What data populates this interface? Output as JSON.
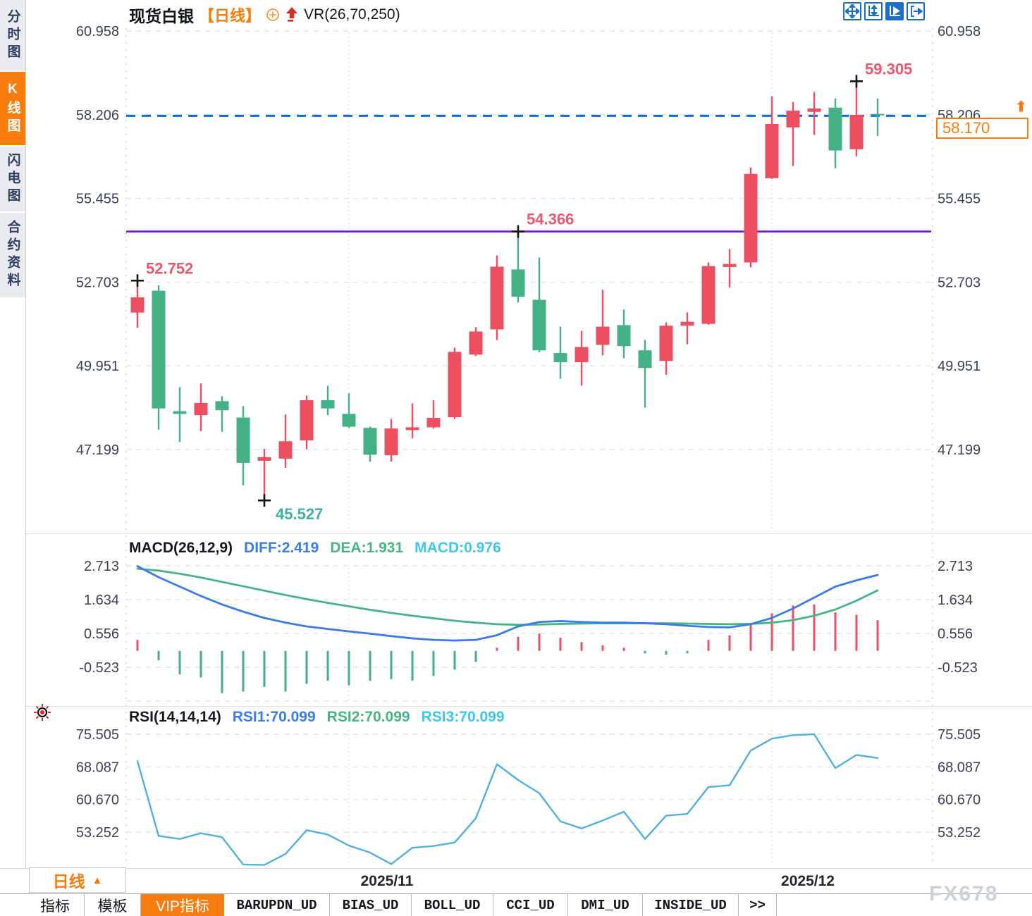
{
  "header": {
    "symbol": "现货白银",
    "period": "【日线】",
    "overlay_indicator": "VR(26,70,250)"
  },
  "sidebar": {
    "items": [
      {
        "label": "分时图",
        "active": false
      },
      {
        "label": "K线图",
        "active": true
      },
      {
        "label": "闪电图",
        "active": false
      },
      {
        "label": "合约资料",
        "active": false
      }
    ]
  },
  "toolbar": {
    "icons": [
      {
        "name": "pan-icon",
        "active": false
      },
      {
        "name": "axis-range-icon",
        "active": false
      },
      {
        "name": "axis-play-icon",
        "active": true
      },
      {
        "name": "exit-right-icon",
        "active": false
      }
    ]
  },
  "current_price": {
    "value": "58.170",
    "direction": "up"
  },
  "period_button": {
    "label": "日线",
    "arrow": "▲"
  },
  "x_axis": {
    "labels": [
      {
        "text": "2025/11",
        "index": 11.8
      },
      {
        "text": "2025/12",
        "index": 31.7
      }
    ],
    "gridline_indices": [
      10,
      30
    ]
  },
  "bottom_tabs": [
    {
      "label": "指标",
      "active": false,
      "mono": false
    },
    {
      "label": "模板",
      "active": false,
      "mono": false
    },
    {
      "label": "VIP指标",
      "active": true,
      "mono": false
    },
    {
      "label": "BARUPDN_UD",
      "active": false,
      "mono": true
    },
    {
      "label": "BIAS_UD",
      "active": false,
      "mono": true
    },
    {
      "label": "BOLL_UD",
      "active": false,
      "mono": true
    },
    {
      "label": "CCI_UD",
      "active": false,
      "mono": true
    },
    {
      "label": "DMI_UD",
      "active": false,
      "mono": true
    },
    {
      "label": "INSIDE_UD",
      "active": false,
      "mono": true
    },
    {
      "label": ">>",
      "active": false,
      "mono": true
    }
  ],
  "watermark": "FX678",
  "colors": {
    "up": "#ec4f5f",
    "down": "#43b183",
    "accent_orange": "#f87d0e",
    "diff_line": "#3a7ce8",
    "dea_line": "#46b584",
    "macd_text": "#3fc6f0",
    "rsi_line": "#4fb0e2",
    "ref_purple": "#7a10e0",
    "ref_blue": "#0a6be8",
    "annotation_red": "#f1556e",
    "annotation_teal": "#3bb3a3",
    "axis_text": "#3a4254",
    "icon_blue": "#1a6fc9"
  },
  "chart_data": [
    {
      "type": "candlestick",
      "name": "price-panel",
      "y_axis_labels": [
        "60.958",
        "58.206",
        "55.455",
        "52.703",
        "49.951",
        "47.199"
      ],
      "ohlc": [
        [
          51.7,
          52.752,
          51.2,
          52.2
        ],
        [
          52.42,
          52.6,
          47.85,
          48.55
        ],
        [
          48.46,
          49.25,
          47.45,
          48.37
        ],
        [
          48.33,
          49.37,
          47.8,
          48.73
        ],
        [
          48.79,
          48.95,
          47.78,
          48.49
        ],
        [
          48.25,
          48.63,
          46.02,
          46.76
        ],
        [
          46.83,
          47.22,
          45.527,
          46.95
        ],
        [
          46.9,
          48.35,
          46.6,
          47.47
        ],
        [
          47.5,
          48.97,
          47.22,
          48.82
        ],
        [
          48.82,
          49.3,
          48.33,
          48.55
        ],
        [
          48.37,
          49.05,
          47.9,
          47.95
        ],
        [
          47.91,
          47.95,
          46.8,
          47.03
        ],
        [
          47.01,
          48.2,
          46.8,
          47.89
        ],
        [
          47.84,
          48.72,
          47.57,
          47.93
        ],
        [
          47.93,
          48.82,
          47.88,
          48.24
        ],
        [
          48.26,
          50.55,
          48.2,
          50.41
        ],
        [
          50.32,
          51.22,
          50.27,
          51.08
        ],
        [
          51.15,
          53.58,
          50.8,
          53.21
        ],
        [
          53.12,
          54.366,
          52.03,
          52.22
        ],
        [
          52.12,
          53.51,
          50.4,
          50.46
        ],
        [
          50.37,
          51.24,
          49.53,
          50.07
        ],
        [
          50.07,
          51.1,
          49.3,
          50.57
        ],
        [
          50.64,
          52.45,
          50.29,
          51.24
        ],
        [
          51.29,
          51.8,
          50.2,
          50.6
        ],
        [
          50.46,
          50.8,
          48.58,
          49.88
        ],
        [
          50.11,
          51.38,
          49.65,
          51.27
        ],
        [
          51.27,
          51.71,
          50.66,
          51.4
        ],
        [
          51.33,
          53.35,
          51.3,
          53.23
        ],
        [
          53.2,
          53.79,
          52.52,
          53.3
        ],
        [
          53.35,
          56.47,
          53.19,
          56.26
        ],
        [
          56.12,
          58.81,
          56.1,
          57.9
        ],
        [
          57.79,
          58.62,
          56.52,
          58.34
        ],
        [
          58.3,
          58.95,
          57.54,
          58.41
        ],
        [
          58.44,
          58.74,
          56.45,
          57.03
        ],
        [
          57.07,
          59.305,
          56.84,
          58.2
        ],
        [
          58.21,
          58.74,
          57.51,
          58.17
        ]
      ],
      "ref_lines": [
        {
          "price": 54.366,
          "style": "solid",
          "color_key": "ref_purple"
        },
        {
          "price": 58.17,
          "style": "dashed",
          "color_key": "ref_blue"
        }
      ],
      "annotations": [
        {
          "text": "52.752",
          "index": 0,
          "anchor": "high",
          "placement": "right-up",
          "color_key": "annotation_red"
        },
        {
          "text": "45.527",
          "index": 6,
          "anchor": "low",
          "placement": "below-right",
          "color_key": "annotation_teal"
        },
        {
          "text": "54.366",
          "index": 18,
          "anchor": "high",
          "placement": "above-right",
          "color_key": "annotation_red"
        },
        {
          "text": "59.305",
          "index": 34,
          "anchor": "high",
          "placement": "above-right",
          "color_key": "annotation_red"
        }
      ]
    },
    {
      "type": "macd",
      "name": "macd-panel",
      "label": "MACD(26,12,9)",
      "value_labels": [
        {
          "text": "DIFF:2.419",
          "color_key": "diff_line"
        },
        {
          "text": "DEA:1.931",
          "color_key": "dea_line"
        },
        {
          "text": "MACD:0.976",
          "color_key": "macd_text"
        }
      ],
      "y_axis_labels": [
        "2.713",
        "1.634",
        "0.556",
        "-0.523"
      ],
      "diff": [
        2.7,
        2.35,
        2.05,
        1.75,
        1.48,
        1.25,
        1.05,
        0.9,
        0.78,
        0.7,
        0.62,
        0.55,
        0.47,
        0.4,
        0.35,
        0.33,
        0.35,
        0.5,
        0.78,
        0.92,
        0.95,
        0.92,
        0.9,
        0.9,
        0.88,
        0.85,
        0.8,
        0.76,
        0.75,
        0.85,
        1.05,
        1.35,
        1.7,
        2.05,
        2.25,
        2.42
      ],
      "dea": [
        2.62,
        2.56,
        2.46,
        2.34,
        2.2,
        2.06,
        1.92,
        1.78,
        1.65,
        1.53,
        1.42,
        1.31,
        1.21,
        1.12,
        1.04,
        0.96,
        0.9,
        0.85,
        0.83,
        0.84,
        0.86,
        0.87,
        0.88,
        0.88,
        0.88,
        0.88,
        0.87,
        0.86,
        0.85,
        0.86,
        0.9,
        0.98,
        1.12,
        1.32,
        1.6,
        1.93
      ],
      "hist": [
        0.35,
        -0.3,
        -0.75,
        -0.85,
        -1.35,
        -1.3,
        -1.15,
        -1.3,
        -1.05,
        -0.95,
        -1.1,
        -0.95,
        -0.9,
        -0.95,
        -0.8,
        -0.6,
        -0.35,
        0.1,
        0.45,
        0.55,
        0.42,
        0.28,
        0.18,
        0.1,
        -0.08,
        -0.12,
        -0.08,
        0.35,
        0.5,
        0.85,
        1.2,
        1.45,
        1.48,
        1.23,
        1.15,
        0.976
      ]
    },
    {
      "type": "line",
      "name": "rsi-panel",
      "label": "RSI(14,14,14)",
      "value_labels": [
        {
          "text": "RSI1:70.099",
          "color_key": "diff_line"
        },
        {
          "text": "RSI2:70.099",
          "color_key": "dea_line"
        },
        {
          "text": "RSI3:70.099",
          "color_key": "macd_text"
        }
      ],
      "y_axis_labels": [
        "75.505",
        "68.087",
        "60.670",
        "53.252"
      ],
      "rsi": [
        69.4,
        52.4,
        51.7,
        53.0,
        52.1,
        45.9,
        45.8,
        48.3,
        53.7,
        52.7,
        50.2,
        48.6,
        46.0,
        49.7,
        50.1,
        50.9,
        56.4,
        68.7,
        65.1,
        62.1,
        55.7,
        54.1,
        55.9,
        57.9,
        51.7,
        57.0,
        57.4,
        63.5,
        63.9,
        71.8,
        74.5,
        75.3,
        75.5,
        67.8,
        70.8,
        70.099
      ]
    }
  ]
}
